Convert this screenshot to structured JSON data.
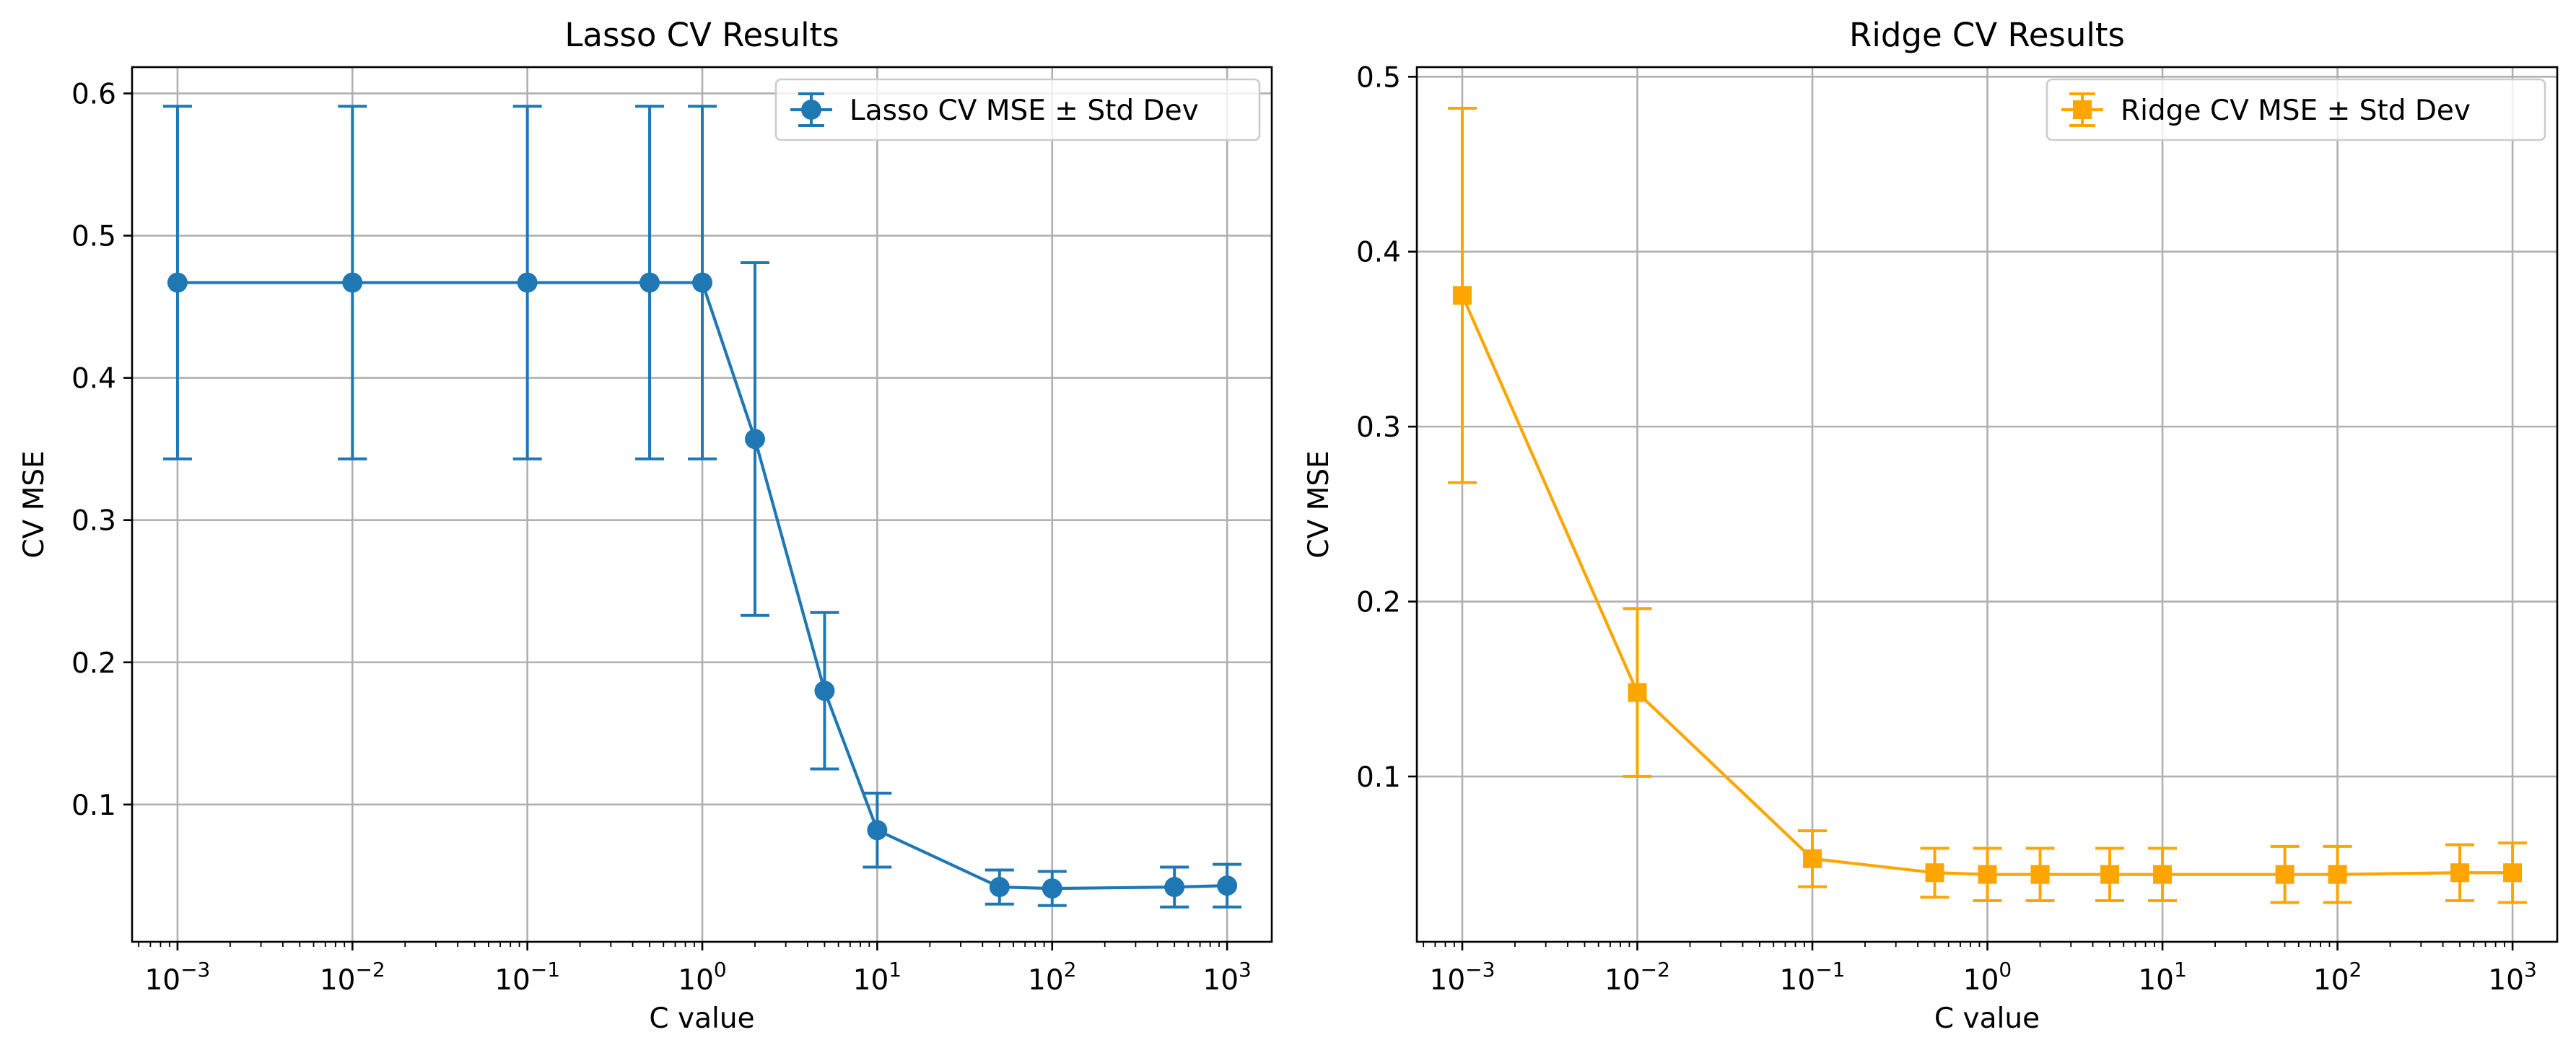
{
  "chart_data": [
    {
      "type": "line",
      "title": "Lasso CV Results",
      "xlabel": "C value",
      "ylabel": "CV MSE",
      "x_scale": "log",
      "xlim": [
        0.00055,
        1800
      ],
      "ylim": [
        0.0035,
        0.6185
      ],
      "x_ticks": [
        {
          "value": 0.001,
          "base": "10",
          "exp": "−3"
        },
        {
          "value": 0.01,
          "base": "10",
          "exp": "−2"
        },
        {
          "value": 0.1,
          "base": "10",
          "exp": "−1"
        },
        {
          "value": 1,
          "base": "10",
          "exp": "0"
        },
        {
          "value": 10,
          "base": "10",
          "exp": "1"
        },
        {
          "value": 100,
          "base": "10",
          "exp": "2"
        },
        {
          "value": 1000,
          "base": "10",
          "exp": "3"
        }
      ],
      "y_ticks": [
        {
          "value": 0.1,
          "label": "0.1"
        },
        {
          "value": 0.2,
          "label": "0.2"
        },
        {
          "value": 0.3,
          "label": "0.3"
        },
        {
          "value": 0.4,
          "label": "0.4"
        },
        {
          "value": 0.5,
          "label": "0.5"
        },
        {
          "value": 0.6,
          "label": "0.6"
        }
      ],
      "grid": true,
      "legend_position": "top-right",
      "series": [
        {
          "name": "Lasso CV MSE ± Std Dev",
          "color": "#1f77b4",
          "marker": "circle",
          "x": [
            0.001,
            0.01,
            0.1,
            0.5,
            1,
            2,
            5,
            10,
            50,
            100,
            500,
            1000
          ],
          "y": [
            0.467,
            0.467,
            0.467,
            0.467,
            0.467,
            0.357,
            0.18,
            0.082,
            0.042,
            0.041,
            0.042,
            0.043
          ],
          "err": [
            0.124,
            0.124,
            0.124,
            0.124,
            0.124,
            0.124,
            0.055,
            0.026,
            0.012,
            0.012,
            0.014,
            0.015
          ]
        }
      ]
    },
    {
      "type": "line",
      "title": "Ridge CV Results",
      "xlabel": "C value",
      "ylabel": "CV MSE",
      "x_scale": "log",
      "xlim": [
        0.00055,
        1800
      ],
      "ylim": [
        0.0055,
        0.5055
      ],
      "x_ticks": [
        {
          "value": 0.001,
          "base": "10",
          "exp": "−3"
        },
        {
          "value": 0.01,
          "base": "10",
          "exp": "−2"
        },
        {
          "value": 0.1,
          "base": "10",
          "exp": "−1"
        },
        {
          "value": 1,
          "base": "10",
          "exp": "0"
        },
        {
          "value": 10,
          "base": "10",
          "exp": "1"
        },
        {
          "value": 100,
          "base": "10",
          "exp": "2"
        },
        {
          "value": 1000,
          "base": "10",
          "exp": "3"
        }
      ],
      "y_ticks": [
        {
          "value": 0.1,
          "label": "0.1"
        },
        {
          "value": 0.2,
          "label": "0.2"
        },
        {
          "value": 0.3,
          "label": "0.3"
        },
        {
          "value": 0.4,
          "label": "0.4"
        },
        {
          "value": 0.5,
          "label": "0.5"
        }
      ],
      "grid": true,
      "legend_position": "top-right",
      "series": [
        {
          "name": "Ridge CV MSE ± Std Dev",
          "color": "#ffa500",
          "marker": "square",
          "x": [
            0.001,
            0.01,
            0.1,
            0.5,
            1,
            2,
            5,
            10,
            50,
            100,
            500,
            1000
          ],
          "y": [
            0.375,
            0.148,
            0.053,
            0.045,
            0.044,
            0.044,
            0.044,
            0.044,
            0.044,
            0.044,
            0.045,
            0.045
          ],
          "err": [
            0.107,
            0.048,
            0.016,
            0.014,
            0.015,
            0.015,
            0.015,
            0.015,
            0.016,
            0.016,
            0.016,
            0.017
          ]
        }
      ]
    }
  ]
}
